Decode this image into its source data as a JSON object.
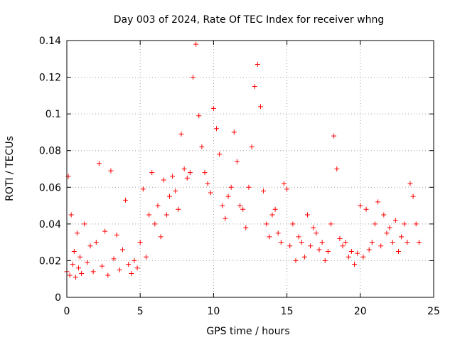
{
  "chart_data": {
    "type": "scatter",
    "title": "Day 003 of 2024, Rate Of TEC Index for receiver whng",
    "xlabel": "GPS time / hours",
    "ylabel": "ROTI / TECUs",
    "xlim": [
      0,
      25
    ],
    "ylim": [
      0,
      0.14
    ],
    "xticks": [
      0,
      5,
      10,
      15,
      20,
      25
    ],
    "yticks": [
      0,
      0.02,
      0.04,
      0.06,
      0.08,
      0.1,
      0.12,
      0.14
    ],
    "xtick_labels": [
      "0",
      "5",
      "10",
      "15",
      "20",
      "25"
    ],
    "ytick_labels": [
      "0",
      "0.02",
      "0.04",
      "0.06",
      "0.08",
      "0.1",
      "0.12",
      "0.14"
    ],
    "grid": true,
    "marker": "plus",
    "color": "#ff0000",
    "series": [
      {
        "x": [
          0.0,
          0.1,
          0.2,
          0.3,
          0.4,
          0.5,
          0.6,
          0.7,
          0.8,
          0.9,
          1.0,
          1.2,
          1.4,
          1.6,
          1.8,
          2.0,
          2.2,
          2.4,
          2.6,
          2.8,
          3.0,
          3.2,
          3.4,
          3.6,
          3.8,
          4.0,
          4.2,
          4.4,
          4.6,
          4.8,
          5.0,
          5.2,
          5.4,
          5.6,
          5.8,
          6.0,
          6.2,
          6.4,
          6.6,
          6.8,
          7.0,
          7.2,
          7.4,
          7.6,
          7.8,
          8.0,
          8.2,
          8.4,
          8.6,
          8.8,
          9.0,
          9.2,
          9.4,
          9.6,
          9.8,
          10.0,
          10.2,
          10.4,
          10.6,
          10.8,
          11.0,
          11.2,
          11.4,
          11.6,
          11.8,
          12.0,
          12.2,
          12.4,
          12.6,
          12.8,
          13.0,
          13.2,
          13.4,
          13.6,
          13.8,
          14.0,
          14.2,
          14.4,
          14.6,
          14.8,
          15.0,
          15.2,
          15.4,
          15.6,
          15.8,
          16.0,
          16.2,
          16.4,
          16.6,
          16.8,
          17.0,
          17.2,
          17.4,
          17.6,
          17.8,
          18.0,
          18.2,
          18.4,
          18.6,
          18.8,
          19.0,
          19.2,
          19.4,
          19.6,
          19.8,
          20.0,
          20.2,
          20.4,
          20.6,
          20.8,
          21.0,
          21.2,
          21.4,
          21.6,
          21.8,
          22.0,
          22.2,
          22.4,
          22.6,
          22.8,
          23.0,
          23.2,
          23.4,
          23.6,
          23.8,
          24.0
        ],
        "y": [
          0.014,
          0.066,
          0.012,
          0.045,
          0.018,
          0.025,
          0.011,
          0.035,
          0.016,
          0.022,
          0.013,
          0.04,
          0.019,
          0.028,
          0.014,
          0.03,
          0.073,
          0.017,
          0.036,
          0.012,
          0.069,
          0.021,
          0.034,
          0.015,
          0.026,
          0.053,
          0.018,
          0.013,
          0.02,
          0.016,
          0.03,
          0.059,
          0.022,
          0.045,
          0.068,
          0.04,
          0.05,
          0.033,
          0.064,
          0.045,
          0.055,
          0.066,
          0.058,
          0.048,
          0.089,
          0.07,
          0.065,
          0.068,
          0.12,
          0.138,
          0.099,
          0.082,
          0.068,
          0.062,
          0.057,
          0.103,
          0.092,
          0.078,
          0.05,
          0.043,
          0.055,
          0.06,
          0.09,
          0.074,
          0.05,
          0.048,
          0.038,
          0.06,
          0.082,
          0.115,
          0.127,
          0.104,
          0.058,
          0.04,
          0.033,
          0.045,
          0.048,
          0.035,
          0.03,
          0.062,
          0.059,
          0.028,
          0.04,
          0.02,
          0.033,
          0.03,
          0.022,
          0.045,
          0.028,
          0.038,
          0.035,
          0.026,
          0.03,
          0.02,
          0.025,
          0.04,
          0.088,
          0.07,
          0.032,
          0.028,
          0.03,
          0.022,
          0.025,
          0.018,
          0.024,
          0.05,
          0.022,
          0.048,
          0.026,
          0.03,
          0.04,
          0.052,
          0.028,
          0.045,
          0.035,
          0.038,
          0.03,
          0.042,
          0.025,
          0.033,
          0.04,
          0.03,
          0.062,
          0.055,
          0.04,
          0.03
        ]
      }
    ]
  }
}
